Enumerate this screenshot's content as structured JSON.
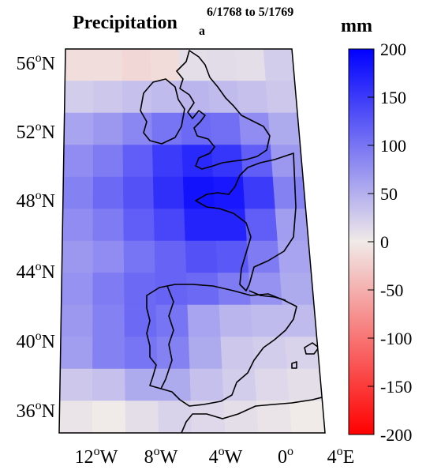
{
  "title": {
    "main": "Precipitation",
    "subscript": "a",
    "superscript": "6/1768 to 5/1769"
  },
  "colorbar": {
    "unit": "mm",
    "ticks": [
      "200",
      "150",
      "100",
      "50",
      "0",
      "-50",
      "-100",
      "-150",
      "-200"
    ],
    "range": [
      -200,
      200
    ],
    "colors": {
      "max": "#0000ff",
      "mid": "#f0eae8",
      "min": "#ff0000"
    }
  },
  "lat_labels": [
    {
      "deg": "56",
      "hemi": "N"
    },
    {
      "deg": "52",
      "hemi": "N"
    },
    {
      "deg": "48",
      "hemi": "N"
    },
    {
      "deg": "44",
      "hemi": "N"
    },
    {
      "deg": "40",
      "hemi": "N"
    },
    {
      "deg": "36",
      "hemi": "N"
    }
  ],
  "lon_labels": [
    {
      "deg": "12",
      "hemi": "W"
    },
    {
      "deg": "8",
      "hemi": "W"
    },
    {
      "deg": "4",
      "hemi": "W"
    },
    {
      "deg": "0",
      "hemi": ""
    },
    {
      "deg": "4",
      "hemi": "E"
    }
  ],
  "chart_data": {
    "type": "heatmap",
    "title": "Precipitation",
    "unit": "mm",
    "region": "Western Europe (Britain, Ireland, France, Iberia)",
    "lat_range": [
      35,
      57
    ],
    "lon_range": [
      -14,
      4
    ],
    "grid_rows": [
      [
        -10,
        -10,
        -15,
        -12,
        10,
        12,
        10,
        25
      ],
      [
        25,
        30,
        35,
        40,
        45,
        40,
        35,
        30
      ],
      [
        60,
        70,
        85,
        100,
        110,
        105,
        80,
        55
      ],
      [
        80,
        95,
        120,
        150,
        165,
        155,
        120,
        70
      ],
      [
        90,
        110,
        130,
        160,
        185,
        180,
        150,
        90
      ],
      [
        80,
        95,
        120,
        140,
        170,
        170,
        120,
        65
      ],
      [
        70,
        80,
        100,
        115,
        130,
        125,
        95,
        60
      ],
      [
        75,
        95,
        110,
        115,
        110,
        95,
        75,
        55
      ],
      [
        70,
        90,
        110,
        100,
        60,
        45,
        40,
        40
      ],
      [
        65,
        90,
        100,
        90,
        55,
        30,
        25,
        20
      ],
      [
        30,
        35,
        55,
        55,
        35,
        25,
        15,
        10
      ],
      [
        5,
        0,
        10,
        20,
        15,
        10,
        5,
        0
      ]
    ]
  }
}
